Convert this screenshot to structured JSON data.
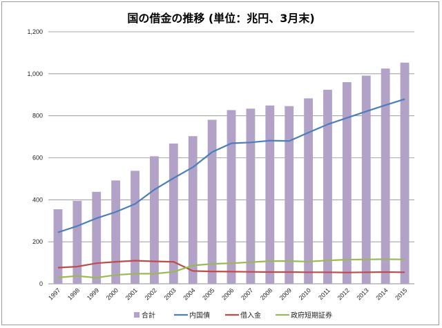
{
  "chart_data": {
    "type": "bar",
    "title": "国の借金の推移 (単位：兆円、3月末)",
    "categories": [
      "1997",
      "1998",
      "1999",
      "2000",
      "2001",
      "2002",
      "2003",
      "2004",
      "2005",
      "2006",
      "2007",
      "2008",
      "2009",
      "2010",
      "2011",
      "2012",
      "2013",
      "2014",
      "2015"
    ],
    "ylim": [
      0,
      1200
    ],
    "yticks": [
      "0",
      "200",
      "400",
      "600",
      "800",
      "1,000",
      "1,200"
    ],
    "grid": true,
    "legend_position": "bottom",
    "series": [
      {
        "name": "合計",
        "type": "bar",
        "color": "#b3a2c7",
        "values": [
          355,
          395,
          438,
          492,
          538,
          607,
          668,
          703,
          781,
          827,
          834,
          849,
          846,
          883,
          924,
          960,
          991,
          1025,
          1053
        ]
      },
      {
        "name": "内国債",
        "type": "line",
        "color": "#4a7ebb",
        "values": [
          245,
          275,
          312,
          342,
          380,
          448,
          503,
          555,
          627,
          669,
          673,
          682,
          680,
          720,
          759,
          790,
          821,
          851,
          879
        ]
      },
      {
        "name": "借入金",
        "type": "line",
        "color": "#be4b48",
        "values": [
          77,
          82,
          98,
          105,
          110,
          107,
          105,
          61,
          59,
          58,
          57,
          56,
          56,
          55,
          55,
          54,
          55,
          56,
          55
        ]
      },
      {
        "name": "政府短期証券",
        "type": "line",
        "color": "#98b954",
        "values": [
          30,
          37,
          29,
          42,
          48,
          48,
          57,
          87,
          95,
          98,
          103,
          108,
          108,
          106,
          111,
          115,
          116,
          117,
          116
        ]
      }
    ]
  }
}
